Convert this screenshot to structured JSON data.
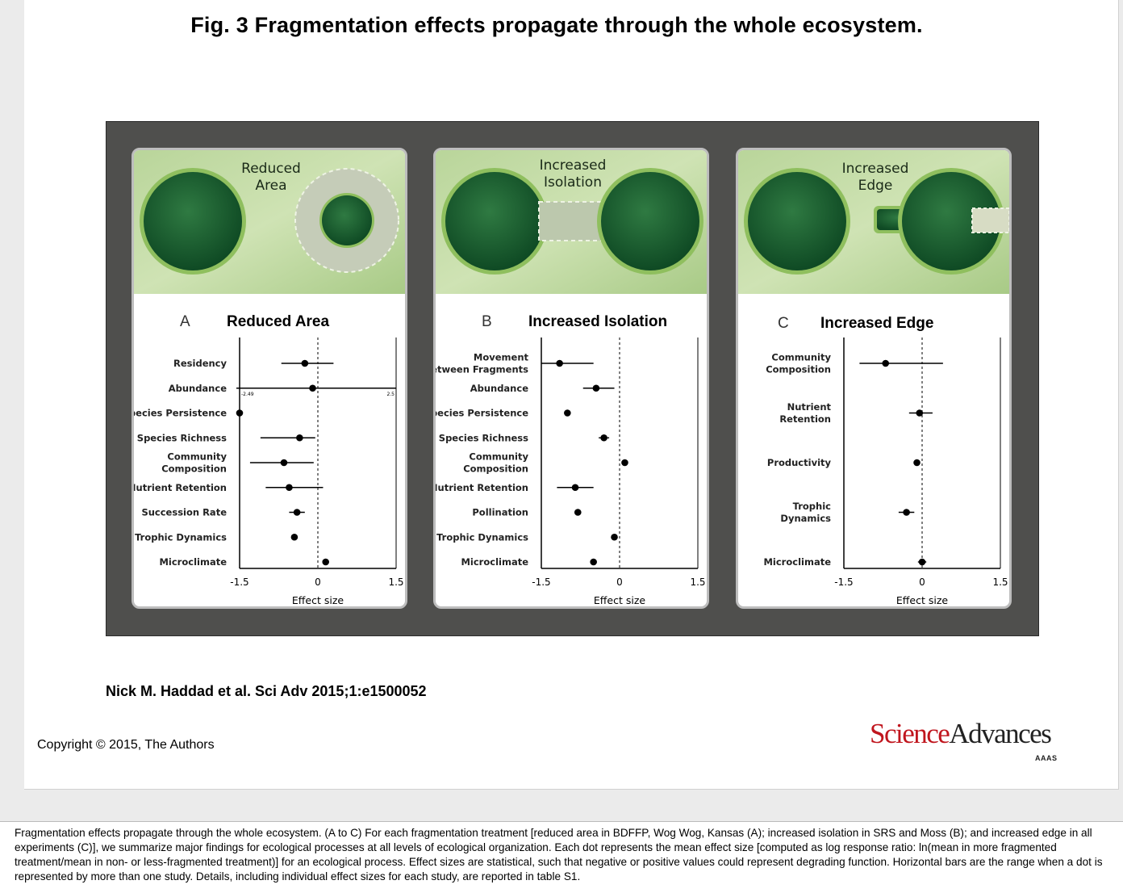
{
  "figure": {
    "title": "Fig. 3 Fragmentation effects propagate through the whole ecosystem.",
    "citation": "Nick M. Haddad et al. Sci Adv 2015;1:e1500052",
    "copyright": "Copyright © 2015, The Authors",
    "logo": {
      "science": "Science",
      "advances": "Advances",
      "sub": "AAAS"
    },
    "caption": "Fragmentation effects propagate through the whole ecosystem. (A to C) For each fragmentation treatment [reduced area in BDFFP, Wog Wog, Kansas (A); increased isolation in SRS and Moss (B); and increased edge in all experiments (C)], we summarize major findings for ecological processes at all levels of ecological organization. Each dot represents the mean effect size [computed as log response ratio: ln(mean in more fragmented treatment/mean in non- or less-fragmented treatment)] for an ecological process. Effect sizes are statistical, such that negative or positive values could represent degrading function. Horizontal bars are the range when a dot is represented by more than one study. Details, including individual effect sizes for each study, are reported in table S1."
  },
  "chart_data": [
    {
      "type": "scatter",
      "panel": "A",
      "title": "Reduced Area",
      "illustration_label": "Reduced Area",
      "xlabel": "Effect size",
      "xlim": [
        -1.5,
        1.5
      ],
      "xticks": [
        "-1.5",
        "0",
        "1.5"
      ],
      "categories": [
        "Residency",
        "Abundance",
        "Species Persistence",
        "Species Richness",
        "Community Composition",
        "Nutrient Retention",
        "Succession Rate",
        "Trophic Dynamics",
        "Microclimate"
      ],
      "values": [
        -0.25,
        -0.1,
        -1.5,
        -0.35,
        -0.65,
        -0.55,
        -0.4,
        -0.45,
        0.15
      ],
      "ranges": [
        [
          -0.7,
          0.3
        ],
        [
          -2.49,
          2.5
        ],
        null,
        [
          -1.1,
          -0.05
        ],
        [
          -1.3,
          -0.08
        ],
        [
          -1.0,
          0.1
        ],
        [
          -0.55,
          -0.25
        ],
        null,
        null
      ],
      "range_labels": {
        "low": "-2.49",
        "high": "2.5"
      }
    },
    {
      "type": "scatter",
      "panel": "B",
      "title": "Increased Isolation",
      "illustration_label": "Increased Isolation",
      "xlabel": "Effect size",
      "xlim": [
        -1.5,
        1.5
      ],
      "xticks": [
        "-1.5",
        "0",
        "1.5"
      ],
      "categories": [
        "Movement Between Fragments",
        "Abundance",
        "Species Persistence",
        "Species Richness",
        "Community Composition",
        "Nutrient Retention",
        "Pollination",
        "Trophic Dynamics",
        "Microclimate"
      ],
      "values": [
        -1.15,
        -0.45,
        -1.0,
        -0.3,
        0.1,
        -0.85,
        -0.8,
        -0.1,
        -0.5
      ],
      "ranges": [
        [
          -1.5,
          -0.5
        ],
        [
          -0.7,
          -0.1
        ],
        null,
        [
          -0.4,
          -0.2
        ],
        null,
        [
          -1.2,
          -0.5
        ],
        null,
        null,
        null
      ]
    },
    {
      "type": "scatter",
      "panel": "C",
      "title": "Increased Edge",
      "illustration_label": "Increased Edge",
      "xlabel": "Effect size",
      "xlim": [
        -1.5,
        1.5
      ],
      "xticks": [
        "-1.5",
        "0",
        "1.5"
      ],
      "categories": [
        "Community Composition",
        "Nutrient Retention",
        "Productivity",
        "Trophic Dynamics",
        "Microclimate"
      ],
      "values": [
        -0.7,
        -0.05,
        -0.1,
        -0.3,
        0.0
      ],
      "ranges": [
        [
          -1.2,
          0.4
        ],
        [
          -0.25,
          0.2
        ],
        null,
        [
          -0.45,
          -0.15
        ],
        [
          -0.08,
          0.08
        ]
      ]
    }
  ]
}
